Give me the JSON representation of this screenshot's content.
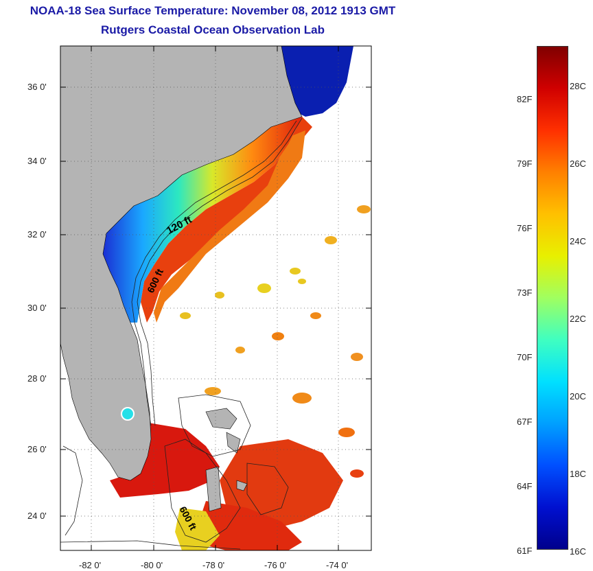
{
  "header": {
    "title": "NOAA-18 Sea Surface Temperature:  November 08, 2012 1913 GMT",
    "subtitle": "Rutgers Coastal Ocean Observation Lab"
  },
  "map": {
    "lat_labels": [
      "36 0'",
      "34 0'",
      "32 0'",
      "30 0'",
      "28 0'",
      "26 0'",
      "24 0'"
    ],
    "lon_labels": [
      "-82 0'",
      "-80 0'",
      "-78 0'",
      "-76 0'",
      "-74 0'"
    ],
    "isobath_labels": [
      "120 ft",
      "600 ft",
      "600 ft"
    ],
    "land_color": "#b4b4b4",
    "ocean_color": "#ffffff"
  },
  "colorbar": {
    "fahrenheit_labels": [
      "82F",
      "79F",
      "76F",
      "73F",
      "70F",
      "67F",
      "64F",
      "61F"
    ],
    "celsius_labels": [
      "28C",
      "26C",
      "24C",
      "22C",
      "20C",
      "18C",
      "16C"
    ],
    "colormap": "jet",
    "range_celsius": [
      16,
      29
    ]
  }
}
